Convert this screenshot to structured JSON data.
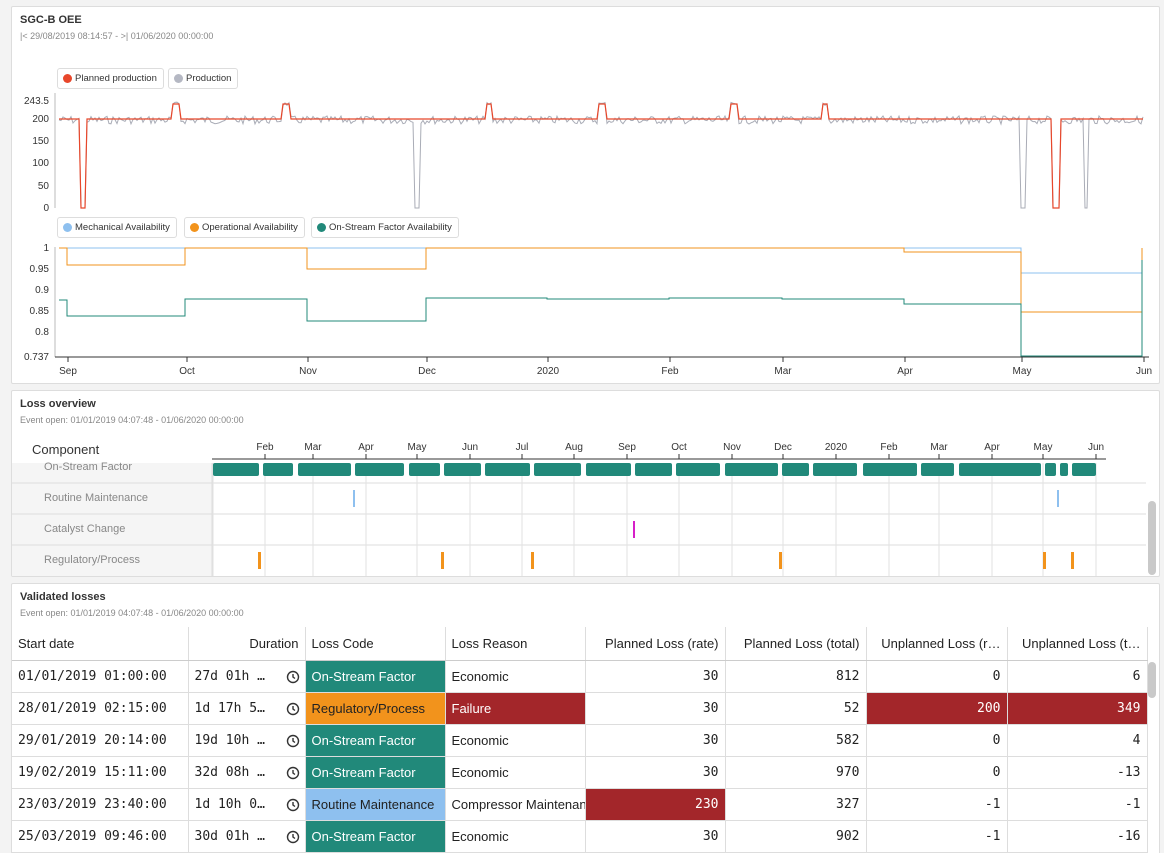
{
  "oee": {
    "title": "SGC-B OEE",
    "subtitle": "|< 29/08/2019 08:14:57 - >| 01/06/2020 00:00:00",
    "legend_top": [
      {
        "label": "Planned production",
        "color": "#e8472b"
      },
      {
        "label": "Production",
        "color": "#b5b8c3"
      }
    ],
    "legend_bottom": [
      {
        "label": "Mechanical Availability",
        "color": "#8ec0ef"
      },
      {
        "label": "Operational Availability",
        "color": "#f2931c"
      },
      {
        "label": "On-Stream Factor Availability",
        "color": "#21897a"
      }
    ],
    "y_ticks_top": [
      "243.5",
      "200",
      "150",
      "100",
      "50",
      "0"
    ],
    "y_ticks_bottom": [
      "1",
      "0.95",
      "0.9",
      "0.85",
      "0.8",
      "0.737"
    ],
    "x_ticks": [
      "Sep",
      "Oct",
      "Nov",
      "Dec",
      "2020",
      "Feb",
      "Mar",
      "Apr",
      "May",
      "Jun"
    ]
  },
  "loss_overview": {
    "title": "Loss overview",
    "subtitle": "Event open: 01/01/2019 04:07:48 - 01/06/2020 00:00:00",
    "component_header": "Component",
    "axis_ticks": [
      "Feb",
      "Mar",
      "Apr",
      "May",
      "Jun",
      "Jul",
      "Aug",
      "Sep",
      "Oct",
      "Nov",
      "Dec",
      "2020",
      "Feb",
      "Mar",
      "Apr",
      "May",
      "Jun"
    ],
    "lanes": [
      {
        "label": "On-Stream Factor"
      },
      {
        "label": "Routine Maintenance"
      },
      {
        "label": "Catalyst Change"
      },
      {
        "label": "Regulatory/Process"
      }
    ]
  },
  "validated": {
    "title": "Validated losses",
    "subtitle": "Event open: 01/01/2019 04:07:48 - 01/06/2020 00:00:00",
    "columns": [
      "Start date",
      "Duration",
      "Loss Code",
      "Loss Reason",
      "Planned Loss (rate)",
      "Planned Loss (total)",
      "Unplanned Loss (r…",
      "Unplanned Loss (t…"
    ],
    "rows": [
      {
        "start": "01/01/2019 01:00:00",
        "duration": "27d 01h …",
        "code": "On-Stream Factor",
        "reason": "Economic",
        "pl_rate": "30",
        "pl_total": "812",
        "ul_rate": "0",
        "ul_total": "6"
      },
      {
        "start": "28/01/2019 02:15:00",
        "duration": "1d 17h 5…",
        "code": "Regulatory/Process",
        "reason": "Failure",
        "pl_rate": "30",
        "pl_total": "52",
        "ul_rate": "200",
        "ul_total": "349"
      },
      {
        "start": "29/01/2019 20:14:00",
        "duration": "19d 10h …",
        "code": "On-Stream Factor",
        "reason": "Economic",
        "pl_rate": "30",
        "pl_total": "582",
        "ul_rate": "0",
        "ul_total": "4"
      },
      {
        "start": "19/02/2019 15:11:00",
        "duration": "32d 08h …",
        "code": "On-Stream Factor",
        "reason": "Economic",
        "pl_rate": "30",
        "pl_total": "970",
        "ul_rate": "0",
        "ul_total": "-13"
      },
      {
        "start": "23/03/2019 23:40:00",
        "duration": "1d 10h 0…",
        "code": "Routine Maintenance",
        "reason": "Compressor Maintenance",
        "pl_rate": "230",
        "pl_total": "327",
        "ul_rate": "-1",
        "ul_total": "-1"
      },
      {
        "start": "25/03/2019 09:46:00",
        "duration": "30d 01h …",
        "code": "On-Stream Factor",
        "reason": "Economic",
        "pl_rate": "30",
        "pl_total": "902",
        "ul_rate": "-1",
        "ul_total": "-16"
      }
    ]
  },
  "colors": {
    "on_stream": "#21897a",
    "regulatory": "#f2931c",
    "routine": "#8ec0ef",
    "catalyst": "#d61fc8",
    "alert": "#a3262a"
  }
}
